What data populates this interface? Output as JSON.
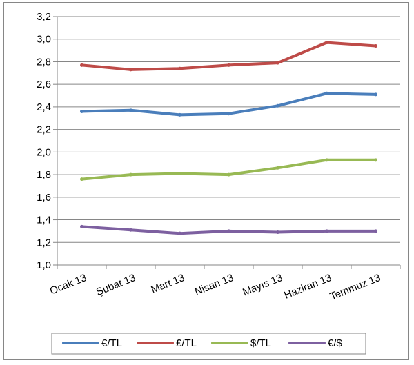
{
  "chart_data": {
    "type": "line",
    "categories": [
      "Ocak 13",
      "Şubat 13",
      "Mart 13",
      "Nisan 13",
      "Mayıs 13",
      "Haziran 13",
      "Temmuz 13"
    ],
    "ylim": [
      1.0,
      3.2
    ],
    "yticks": [
      "1,0",
      "1,2",
      "1,4",
      "1,6",
      "1,8",
      "2,0",
      "2,2",
      "2,4",
      "2,6",
      "2,8",
      "3,0",
      "3,2"
    ],
    "grid": "horizontal",
    "legend_position": "bottom",
    "series": [
      {
        "name": "€/TL",
        "color": "#4a7ebb",
        "values": [
          2.36,
          2.37,
          2.33,
          2.34,
          2.41,
          2.52,
          2.51
        ]
      },
      {
        "name": "£/TL",
        "color": "#be4b48",
        "values": [
          2.77,
          2.73,
          2.74,
          2.77,
          2.79,
          2.97,
          2.94
        ]
      },
      {
        "name": "$/TL",
        "color": "#98b954",
        "values": [
          1.76,
          1.8,
          1.81,
          1.8,
          1.86,
          1.93,
          1.93
        ]
      },
      {
        "name": "€/$",
        "color": "#7d60a0",
        "values": [
          1.34,
          1.31,
          1.28,
          1.3,
          1.29,
          1.3,
          1.3
        ]
      }
    ]
  }
}
